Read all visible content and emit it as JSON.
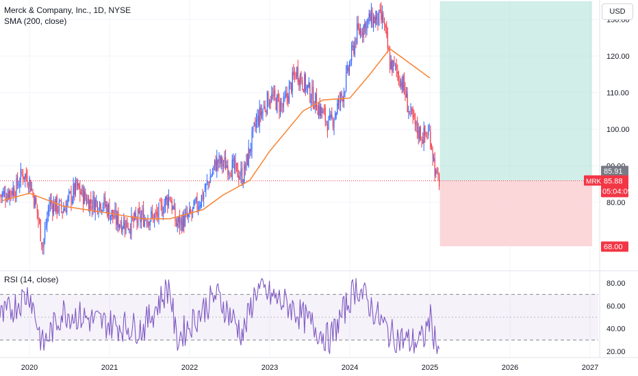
{
  "title": "Merck & Company, Inc., 1D, NYSE",
  "indicators": {
    "sma_label": "SMA (200, close)",
    "rsi_label": "RSI (14, close)"
  },
  "currency": "USD",
  "price_tags": {
    "prev_value": "85.91",
    "symbol": "MRK",
    "last_price": "85.88",
    "countdown": "05:04:09",
    "stop_value": "68.00"
  },
  "colors": {
    "up": "#2962ff",
    "down": "#f23645",
    "sma": "#f7883a",
    "rsi": "#7e57c2",
    "profit_zone": "#b2e3d8",
    "loss_zone": "#fbcdd1",
    "last_price_line": "#f23645"
  },
  "chart_data": [
    {
      "type": "candlestick",
      "title": "Merck & Company, Inc., 1D, NYSE",
      "y_axis_ticks": [
        "80.00",
        "90.00",
        "100.00",
        "110.00",
        "120.00",
        "130.00"
      ],
      "x_axis_ticks": [
        "2020",
        "2021",
        "2022",
        "2023",
        "2024",
        "2025",
        "2026",
        "2027"
      ],
      "ylim": [
        64,
        136
      ],
      "series": [
        {
          "name": "MRK",
          "close_path": [
            [
              "2019-09",
              82
            ],
            [
              "2019-11",
              84
            ],
            [
              "2019-12",
              88
            ],
            [
              "2020-01",
              86
            ],
            [
              "2020-02",
              79
            ],
            [
              "2020-03",
              68
            ],
            [
              "2020-04",
              80
            ],
            [
              "2020-06",
              78
            ],
            [
              "2020-08",
              84
            ],
            [
              "2020-10",
              80
            ],
            [
              "2020-12",
              80
            ],
            [
              "2021-02",
              75
            ],
            [
              "2021-04",
              74
            ],
            [
              "2021-06",
              76
            ],
            [
              "2021-08",
              76
            ],
            [
              "2021-10",
              82
            ],
            [
              "2021-11",
              74
            ],
            [
              "2022-01",
              76
            ],
            [
              "2022-03",
              82
            ],
            [
              "2022-05",
              91
            ],
            [
              "2022-07",
              90
            ],
            [
              "2022-09",
              87
            ],
            [
              "2022-11",
              102
            ],
            [
              "2023-01",
              109
            ],
            [
              "2023-03",
              106
            ],
            [
              "2023-05",
              116
            ],
            [
              "2023-07",
              110
            ],
            [
              "2023-09",
              104
            ],
            [
              "2023-10",
              101
            ],
            [
              "2023-12",
              110
            ],
            [
              "2024-02",
              126
            ],
            [
              "2024-04",
              130
            ],
            [
              "2024-06",
              130
            ],
            [
              "2024-07",
              118
            ],
            [
              "2024-08",
              116
            ],
            [
              "2024-09",
              112
            ],
            [
              "2024-10",
              104
            ],
            [
              "2024-11",
              100
            ],
            [
              "2024-12",
              98
            ],
            [
              "2025-01",
              99
            ],
            [
              "2025-02",
              86
            ]
          ]
        },
        {
          "name": "SMA (200, close)",
          "values": [
            [
              "2019-09",
              80.5
            ],
            [
              "2020-01",
              82.5
            ],
            [
              "2020-06",
              79
            ],
            [
              "2021-01",
              77
            ],
            [
              "2021-06",
              75.5
            ],
            [
              "2021-10",
              75.5
            ],
            [
              "2022-03",
              78
            ],
            [
              "2022-06",
              82
            ],
            [
              "2022-10",
              86
            ],
            [
              "2023-01",
              94
            ],
            [
              "2023-06",
              105
            ],
            [
              "2023-09",
              108
            ],
            [
              "2024-01",
              108.5
            ],
            [
              "2024-04",
              115
            ],
            [
              "2024-07",
              122
            ],
            [
              "2024-10",
              118
            ],
            [
              "2025-01",
              114
            ]
          ]
        }
      ],
      "last_price": 85.88,
      "position": {
        "entry": 85.88,
        "target": 135,
        "stop": 68.0,
        "start": "2025-02",
        "end": "2027-01"
      }
    },
    {
      "type": "line",
      "title": "RSI (14, close)",
      "y_axis_ticks": [
        "20.00",
        "40.00",
        "60.00",
        "80.00"
      ],
      "ylim": [
        15,
        85
      ],
      "bands": [
        30,
        50,
        70
      ],
      "series": [
        {
          "name": "RSI (14, close)",
          "anchors": [
            [
              "2019-09",
              50
            ],
            [
              "2020-01",
              72
            ],
            [
              "2020-03",
              25
            ],
            [
              "2020-06",
              55
            ],
            [
              "2020-12",
              45
            ],
            [
              "2021-06",
              40
            ],
            [
              "2021-10",
              78
            ],
            [
              "2021-11",
              30
            ],
            [
              "2022-05",
              70
            ],
            [
              "2022-09",
              35
            ],
            [
              "2022-11",
              75
            ],
            [
              "2023-04",
              60
            ],
            [
              "2023-10",
              30
            ],
            [
              "2024-02",
              78
            ],
            [
              "2024-07",
              35
            ],
            [
              "2024-10",
              28
            ],
            [
              "2024-12",
              30
            ],
            [
              "2025-01",
              50
            ],
            [
              "2025-02",
              25
            ]
          ]
        }
      ]
    }
  ]
}
